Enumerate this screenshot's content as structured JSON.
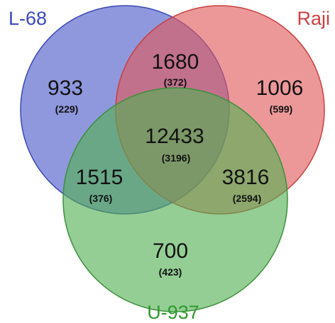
{
  "sets": [
    {
      "id": "l68",
      "label": "L-68",
      "color": "#4050c8"
    },
    {
      "id": "raji",
      "label": "Raji",
      "color": "#dc4b4b"
    },
    {
      "id": "u937",
      "label": "U-937",
      "color": "#3ea03e"
    }
  ],
  "regions": {
    "l68_only": {
      "count": "933",
      "sub": "(229)"
    },
    "raji_only": {
      "count": "1006",
      "sub": "(599)"
    },
    "u937_only": {
      "count": "700",
      "sub": "(423)"
    },
    "l68_raji": {
      "count": "1680",
      "sub": "(372)"
    },
    "l68_u937": {
      "count": "1515",
      "sub": "(376)"
    },
    "raji_u937": {
      "count": "3816",
      "sub": "(2594)"
    },
    "all": {
      "count": "12433",
      "sub": "(3196)"
    }
  }
}
